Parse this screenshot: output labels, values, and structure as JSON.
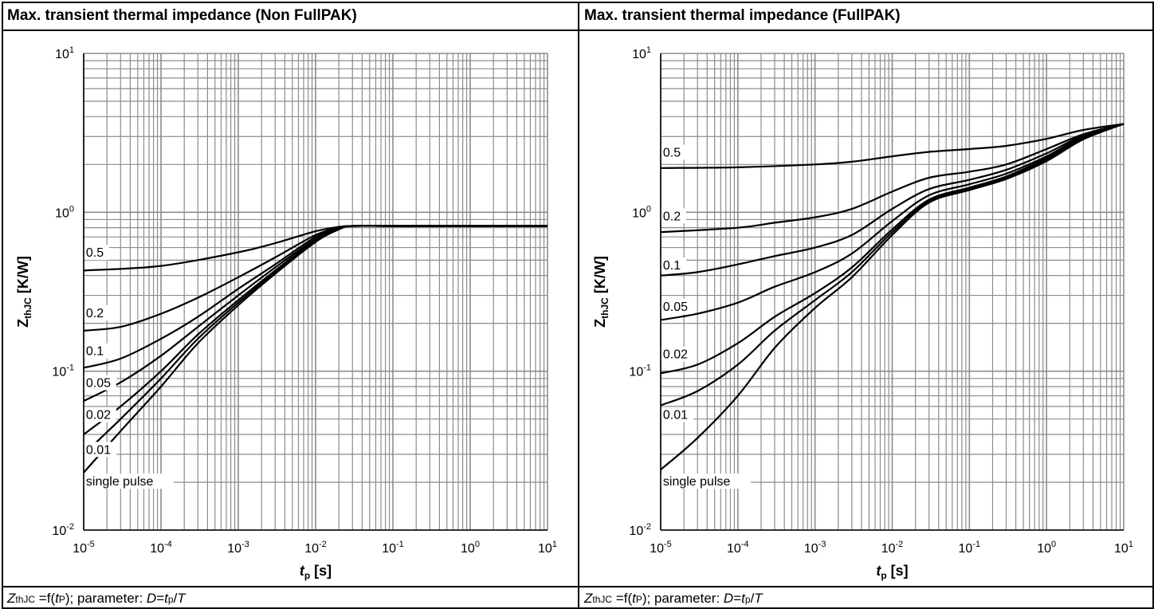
{
  "panels": [
    {
      "title": "Max. transient thermal impedance (Non FullPAK)",
      "caption": "Z_thJC =f(t_P); parameter: D=t_p/T"
    },
    {
      "title": "Max. transient thermal impedance (FullPAK)",
      "caption": "Z_thJC =f(t_P); parameter: D=t_p/T"
    }
  ],
  "chart_data": [
    {
      "type": "line",
      "title": "Max. transient thermal impedance (Non FullPAK)",
      "xlabel": "t_p [s]",
      "ylabel": "Z_thJC [K/W]",
      "x_scale": "log",
      "y_scale": "log",
      "xlim": [
        1e-05,
        10
      ],
      "ylim": [
        0.01,
        10
      ],
      "x_ticks": [
        "10^-5",
        "10^-4",
        "10^-3",
        "10^-2",
        "10^-1",
        "10^0",
        "10^1"
      ],
      "y_ticks": [
        "10^-2",
        "10^-1",
        "10^0",
        "10^1"
      ],
      "grid": true,
      "series": [
        {
          "name": "0.5",
          "x": [
            1e-05,
            0.0001,
            0.001,
            0.003,
            0.01,
            0.02,
            0.03,
            0.1,
            1,
            10
          ],
          "y": [
            0.43,
            0.46,
            0.56,
            0.64,
            0.76,
            0.81,
            0.82,
            0.82,
            0.82,
            0.82
          ]
        },
        {
          "name": "0.2",
          "x": [
            1e-05,
            3e-05,
            0.0001,
            0.0003,
            0.001,
            0.003,
            0.01,
            0.02,
            0.03,
            0.1,
            1,
            10
          ],
          "y": [
            0.18,
            0.19,
            0.23,
            0.29,
            0.39,
            0.52,
            0.72,
            0.8,
            0.82,
            0.82,
            0.82,
            0.82
          ]
        },
        {
          "name": "0.1",
          "x": [
            1e-05,
            3e-05,
            0.0001,
            0.0003,
            0.001,
            0.003,
            0.01,
            0.02,
            0.03,
            0.1,
            1,
            10
          ],
          "y": [
            0.105,
            0.12,
            0.16,
            0.22,
            0.33,
            0.47,
            0.7,
            0.8,
            0.82,
            0.82,
            0.82,
            0.82
          ]
        },
        {
          "name": "0.05",
          "x": [
            1e-05,
            3e-05,
            0.0001,
            0.0003,
            0.001,
            0.003,
            0.01,
            0.02,
            0.03,
            0.1,
            1,
            10
          ],
          "y": [
            0.065,
            0.085,
            0.125,
            0.19,
            0.3,
            0.45,
            0.68,
            0.79,
            0.82,
            0.82,
            0.82,
            0.82
          ]
        },
        {
          "name": "0.02",
          "x": [
            1e-05,
            3e-05,
            0.0001,
            0.0003,
            0.001,
            0.003,
            0.01,
            0.02,
            0.03,
            0.1,
            1,
            10
          ],
          "y": [
            0.04,
            0.06,
            0.1,
            0.17,
            0.28,
            0.43,
            0.67,
            0.79,
            0.82,
            0.82,
            0.82,
            0.82
          ]
        },
        {
          "name": "0.01",
          "x": [
            1e-05,
            3e-05,
            0.0001,
            0.0003,
            0.001,
            0.003,
            0.01,
            0.02,
            0.03,
            0.1,
            1,
            10
          ],
          "y": [
            0.03,
            0.05,
            0.09,
            0.16,
            0.27,
            0.42,
            0.66,
            0.79,
            0.82,
            0.82,
            0.82,
            0.82
          ]
        },
        {
          "name": "single pulse",
          "x": [
            1e-05,
            3e-05,
            0.0001,
            0.0003,
            0.001,
            0.003,
            0.01,
            0.02,
            0.03,
            0.1,
            1,
            10
          ],
          "y": [
            0.023,
            0.042,
            0.08,
            0.15,
            0.26,
            0.41,
            0.65,
            0.78,
            0.82,
            0.82,
            0.82,
            0.82
          ]
        }
      ]
    },
    {
      "type": "line",
      "title": "Max. transient thermal impedance (FullPAK)",
      "xlabel": "t_p [s]",
      "ylabel": "Z_thJC [K/W]",
      "x_scale": "log",
      "y_scale": "log",
      "xlim": [
        1e-05,
        10
      ],
      "ylim": [
        0.01,
        10
      ],
      "x_ticks": [
        "10^-5",
        "10^-4",
        "10^-3",
        "10^-2",
        "10^-1",
        "10^0",
        "10^1"
      ],
      "y_ticks": [
        "10^-2",
        "10^-1",
        "10^0",
        "10^1"
      ],
      "grid": true,
      "series": [
        {
          "name": "0.5",
          "x": [
            1e-05,
            0.0001,
            0.001,
            0.003,
            0.01,
            0.03,
            0.1,
            0.3,
            1,
            3,
            10
          ],
          "y": [
            1.9,
            1.92,
            2.0,
            2.08,
            2.25,
            2.4,
            2.5,
            2.62,
            2.9,
            3.3,
            3.6
          ]
        },
        {
          "name": "0.2",
          "x": [
            1e-05,
            0.0001,
            0.0003,
            0.001,
            0.003,
            0.01,
            0.03,
            0.1,
            0.3,
            1,
            3,
            10
          ],
          "y": [
            0.75,
            0.8,
            0.86,
            0.93,
            1.05,
            1.35,
            1.65,
            1.8,
            2.0,
            2.5,
            3.1,
            3.6
          ]
        },
        {
          "name": "0.1",
          "x": [
            1e-05,
            3e-05,
            0.0001,
            0.0003,
            0.001,
            0.003,
            0.01,
            0.03,
            0.1,
            0.3,
            1,
            3,
            10
          ],
          "y": [
            0.4,
            0.42,
            0.47,
            0.53,
            0.6,
            0.72,
            1.05,
            1.4,
            1.6,
            1.85,
            2.35,
            3.05,
            3.6
          ]
        },
        {
          "name": "0.05",
          "x": [
            1e-05,
            3e-05,
            0.0001,
            0.0003,
            0.001,
            0.003,
            0.01,
            0.03,
            0.1,
            0.3,
            1,
            3,
            10
          ],
          "y": [
            0.21,
            0.23,
            0.27,
            0.34,
            0.42,
            0.55,
            0.88,
            1.28,
            1.5,
            1.75,
            2.25,
            3.0,
            3.6
          ]
        },
        {
          "name": "0.02",
          "x": [
            1e-05,
            3e-05,
            0.0001,
            0.0003,
            0.001,
            0.003,
            0.01,
            0.03,
            0.1,
            0.3,
            1,
            3,
            10
          ],
          "y": [
            0.097,
            0.11,
            0.15,
            0.22,
            0.31,
            0.45,
            0.78,
            1.2,
            1.43,
            1.68,
            2.2,
            2.95,
            3.6
          ]
        },
        {
          "name": "0.01",
          "x": [
            1e-05,
            3e-05,
            0.0001,
            0.0003,
            0.001,
            0.003,
            0.01,
            0.03,
            0.1,
            0.3,
            1,
            3,
            10
          ],
          "y": [
            0.061,
            0.075,
            0.11,
            0.18,
            0.28,
            0.42,
            0.75,
            1.17,
            1.4,
            1.65,
            2.15,
            2.9,
            3.6
          ]
        },
        {
          "name": "single pulse",
          "x": [
            1e-05,
            3e-05,
            0.0001,
            0.0003,
            0.001,
            0.003,
            0.01,
            0.03,
            0.1,
            0.3,
            1,
            3,
            10
          ],
          "y": [
            0.024,
            0.038,
            0.07,
            0.14,
            0.25,
            0.39,
            0.72,
            1.15,
            1.38,
            1.62,
            2.1,
            2.88,
            3.6
          ]
        }
      ]
    }
  ]
}
